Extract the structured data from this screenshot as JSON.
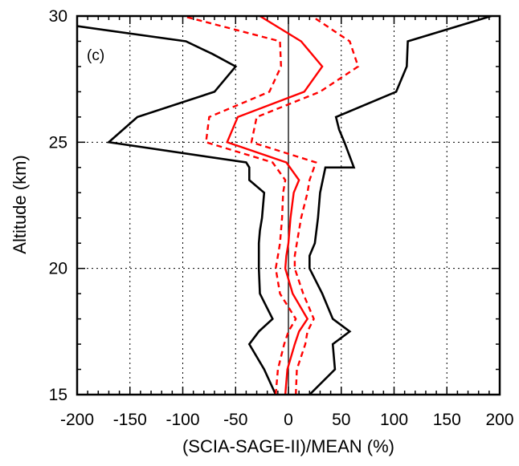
{
  "chart_data": {
    "type": "line",
    "panel_label": "(c)",
    "xlabel": "(SCIA-SAGE-II)/MEAN (%)",
    "ylabel": "Altitude (km)",
    "xlim": [
      -200,
      200
    ],
    "ylim": [
      15,
      30
    ],
    "xticks": [
      -200,
      -150,
      -100,
      -50,
      0,
      50,
      100,
      150,
      200
    ],
    "yticks": [
      15,
      20,
      25,
      30
    ],
    "grid": true,
    "zero_line": true,
    "colors": {
      "envelope": "#000000",
      "mean": "#ff0000",
      "error": "#ff0000"
    },
    "series": [
      {
        "style": "solid",
        "color": "#000000",
        "x": [
          -12,
          -23,
          -37,
          -28,
          -15,
          -27,
          -28,
          -28,
          -28,
          -27,
          -25,
          -23,
          -37,
          -37,
          -40,
          -170,
          -143,
          -70,
          -50,
          -72,
          -97,
          -200
        ],
        "y": [
          15,
          16,
          17,
          17.5,
          18,
          19,
          20,
          20.5,
          21,
          21.5,
          22,
          23,
          23.5,
          24,
          24.2,
          25,
          26,
          27,
          28,
          28.5,
          29,
          29.6
        ]
      },
      {
        "style": "solid",
        "color": "#000000",
        "x": [
          20,
          44,
          42,
          58,
          42,
          32,
          20,
          20,
          25,
          28,
          30,
          35,
          62,
          53,
          48,
          45,
          102,
          112,
          113,
          192
        ],
        "y": [
          15,
          16,
          17,
          17.5,
          18,
          19,
          20,
          20.5,
          21,
          22,
          23,
          24,
          24,
          25,
          25.5,
          26,
          27,
          28,
          29,
          30
        ]
      },
      {
        "style": "solid",
        "color": "#ff0000",
        "x": [
          -3,
          -1,
          6,
          10,
          18,
          4,
          -3,
          -2,
          0,
          2,
          5,
          10,
          -2,
          -58,
          -48,
          15,
          32,
          12,
          -27
        ],
        "y": [
          15,
          16,
          17,
          17.5,
          18,
          19,
          20,
          20.5,
          21,
          22,
          23,
          23.5,
          24.2,
          25,
          26,
          27,
          28,
          29,
          30
        ]
      },
      {
        "style": "dashed",
        "color": "#ff0000",
        "x": [
          -12,
          -10,
          -4,
          0,
          7,
          -8,
          -12,
          -10,
          -8,
          -6,
          -5,
          -3,
          -15,
          -78,
          -75,
          -18,
          -7,
          -8,
          -100
        ],
        "y": [
          15,
          16,
          17,
          17.5,
          18,
          19,
          20,
          20.5,
          21,
          22,
          23,
          23.5,
          24.2,
          25,
          26,
          27,
          28,
          29,
          30
        ]
      },
      {
        "style": "dashed",
        "color": "#ff0000",
        "x": [
          7,
          8,
          16,
          18,
          24,
          14,
          6,
          6,
          8,
          12,
          18,
          20,
          26,
          -35,
          -30,
          30,
          66,
          58,
          22
        ],
        "y": [
          15,
          16,
          17,
          17.5,
          18,
          19,
          20,
          20.5,
          21,
          22,
          23,
          23.5,
          24.2,
          25,
          26,
          27,
          28,
          29,
          30
        ]
      }
    ]
  }
}
